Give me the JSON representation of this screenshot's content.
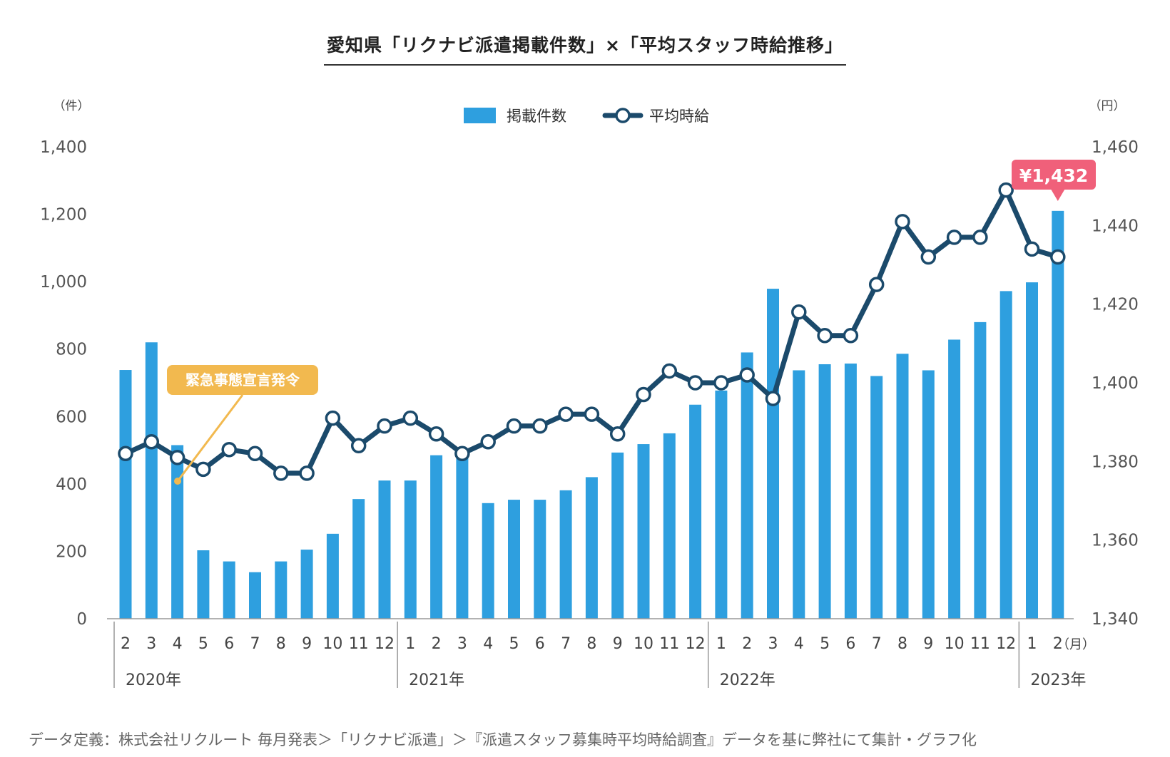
{
  "title": "愛知県「リクナビ派遣掲載件数」×「平均スタッフ時給推移」",
  "footer": "データ定義：株式会社リクルート 毎月発表＞「リクナビ派遣」＞『派遣スタッフ募集時平均時給調査』データを基に弊社にて集計・グラフ化",
  "annotation": {
    "text": "緊急事態宣言発令",
    "color": "#f2b94f"
  },
  "callout": {
    "text": "¥1,432",
    "color": "#f0607a"
  },
  "colors": {
    "bar": "#2e9fdf",
    "line": "#1b4a6b",
    "axis": "#999999"
  },
  "chart_data": {
    "type": "bar",
    "title": "愛知県「リクナビ派遣掲載件数」×「平均スタッフ時給推移」",
    "left_unit": "（件）",
    "right_unit": "（円）",
    "x_unit": "（月）",
    "categories": [
      "2",
      "3",
      "4",
      "5",
      "6",
      "7",
      "8",
      "9",
      "10",
      "11",
      "12",
      "1",
      "2",
      "3",
      "4",
      "5",
      "6",
      "7",
      "8",
      "9",
      "10",
      "11",
      "12",
      "1",
      "2",
      "3",
      "4",
      "5",
      "6",
      "7",
      "8",
      "9",
      "10",
      "11",
      "12",
      "1",
      "2"
    ],
    "years": [
      {
        "label": "2020年",
        "start": 0,
        "end": 10
      },
      {
        "label": "2021年",
        "start": 11,
        "end": 22
      },
      {
        "label": "2022年",
        "start": 23,
        "end": 34
      },
      {
        "label": "2023年",
        "start": 35,
        "end": 36
      }
    ],
    "ylim_left": [
      0,
      1400
    ],
    "yticks_left": [
      "0",
      "200",
      "400",
      "600",
      "800",
      "1,000",
      "1,200",
      "1,400"
    ],
    "ylim_right": [
      1340,
      1460
    ],
    "yticks_right": [
      "1,340",
      "1,360",
      "1,380",
      "1,400",
      "1,420",
      "1,440",
      "1,460"
    ],
    "legend": {
      "position": "top",
      "bar_label": "掲載件数",
      "line_label": "平均時給"
    },
    "series": [
      {
        "name": "掲載件数",
        "type": "bar",
        "values": [
          738,
          820,
          515,
          203,
          170,
          138,
          170,
          205,
          252,
          355,
          410,
          410,
          485,
          495,
          343,
          353,
          353,
          381,
          420,
          493,
          518,
          550,
          635,
          677,
          790,
          979,
          737,
          755,
          757,
          720,
          786,
          737,
          828,
          880,
          972,
          998,
          1210
        ]
      },
      {
        "name": "平均時給",
        "type": "line",
        "values": [
          1382,
          1385,
          1381,
          1378,
          1383,
          1382,
          1377,
          1377,
          1391,
          1384,
          1389,
          1391,
          1387,
          1382,
          1385,
          1389,
          1389,
          1392,
          1392,
          1387,
          1397,
          1403,
          1400,
          1400,
          1402,
          1396,
          1418,
          1412,
          1412,
          1425,
          1441,
          1432,
          1437,
          1437,
          1449,
          1434,
          1432
        ]
      }
    ]
  }
}
